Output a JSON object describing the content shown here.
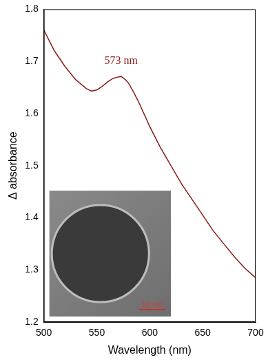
{
  "chart_data": {
    "type": "line",
    "x_label": "Wavelength (nm)",
    "y_label": "Δ absorbance",
    "x": [
      500,
      510,
      520,
      530,
      540,
      545,
      550,
      555,
      560,
      565,
      570,
      573,
      577,
      580,
      585,
      590,
      600,
      610,
      620,
      630,
      640,
      650,
      660,
      670,
      680,
      690,
      700
    ],
    "values": [
      1.76,
      1.72,
      1.69,
      1.665,
      1.648,
      1.643,
      1.645,
      1.652,
      1.66,
      1.667,
      1.67,
      1.671,
      1.665,
      1.658,
      1.64,
      1.62,
      1.575,
      1.535,
      1.5,
      1.465,
      1.435,
      1.405,
      1.375,
      1.35,
      1.325,
      1.303,
      1.285
    ],
    "color": "#8b1a1a",
    "xlim": [
      500,
      700
    ],
    "xticks": [
      500,
      550,
      600,
      650,
      700
    ],
    "ylim": [
      1.2,
      1.8
    ],
    "yticks": [
      1.2,
      1.3,
      1.4,
      1.5,
      1.6,
      1.7,
      1.8
    ],
    "grid": false,
    "annotations": [
      {
        "text": "573 nm",
        "x": 573,
        "y": 1.69
      }
    ],
    "inset": {
      "scale_bar": "10 nm"
    }
  }
}
